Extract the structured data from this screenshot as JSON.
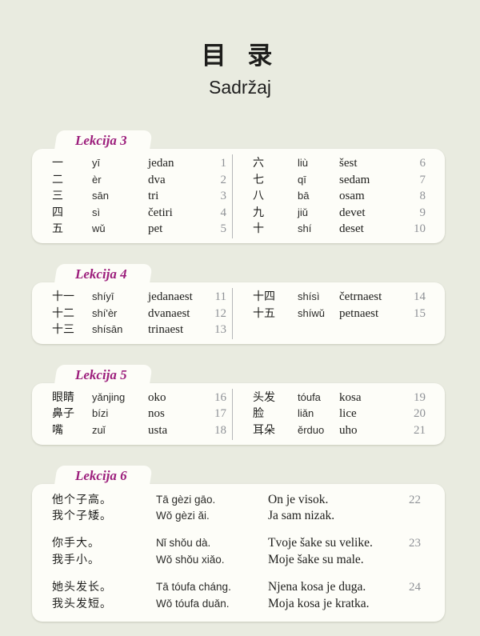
{
  "title": {
    "zh": "目 录",
    "latin": "Sadržaj"
  },
  "colors": {
    "background": "#e9ebe0",
    "card": "#fdfdf8",
    "accent": "#9c1e7c",
    "page_number": "#8e9196",
    "divider": "#b5b6b8",
    "text": "#1d1d1b"
  },
  "sections": [
    {
      "label": "Lekcija 3",
      "left": [
        {
          "hanzi": "一",
          "pinyin": "yī",
          "translation": "jedan",
          "page": "1"
        },
        {
          "hanzi": "二",
          "pinyin": "èr",
          "translation": "dva",
          "page": "2"
        },
        {
          "hanzi": "三",
          "pinyin": "sān",
          "translation": "tri",
          "page": "3"
        },
        {
          "hanzi": "四",
          "pinyin": "sì",
          "translation": "četiri",
          "page": "4"
        },
        {
          "hanzi": "五",
          "pinyin": "wǔ",
          "translation": "pet",
          "page": "5"
        }
      ],
      "right": [
        {
          "hanzi": "六",
          "pinyin": "liù",
          "translation": "šest",
          "page": "6"
        },
        {
          "hanzi": "七",
          "pinyin": "qī",
          "translation": "sedam",
          "page": "7"
        },
        {
          "hanzi": "八",
          "pinyin": "bā",
          "translation": "osam",
          "page": "8"
        },
        {
          "hanzi": "九",
          "pinyin": "jiǔ",
          "translation": "devet",
          "page": "9"
        },
        {
          "hanzi": "十",
          "pinyin": "shí",
          "translation": "deset",
          "page": "10"
        }
      ]
    },
    {
      "label": "Lekcija 4",
      "left": [
        {
          "hanzi": "十一",
          "pinyin": "shíyī",
          "translation": "jedanaest",
          "page": "11"
        },
        {
          "hanzi": "十二",
          "pinyin": "shí'èr",
          "translation": "dvanaest",
          "page": "12"
        },
        {
          "hanzi": "十三",
          "pinyin": "shísān",
          "translation": "trinaest",
          "page": "13"
        }
      ],
      "right": [
        {
          "hanzi": "十四",
          "pinyin": "shísì",
          "translation": "četrnaest",
          "page": "14"
        },
        {
          "hanzi": "十五",
          "pinyin": "shíwǔ",
          "translation": "petnaest",
          "page": "15"
        }
      ]
    },
    {
      "label": "Lekcija 5",
      "left": [
        {
          "hanzi": "眼睛",
          "pinyin": "yǎnjing",
          "translation": "oko",
          "page": "16"
        },
        {
          "hanzi": "鼻子",
          "pinyin": "bízi",
          "translation": "nos",
          "page": "17"
        },
        {
          "hanzi": "嘴",
          "pinyin": "zuǐ",
          "translation": "usta",
          "page": "18"
        }
      ],
      "right": [
        {
          "hanzi": "头发",
          "pinyin": "tóufa",
          "translation": "kosa",
          "page": "19"
        },
        {
          "hanzi": "脸",
          "pinyin": "liǎn",
          "translation": "lice",
          "page": "20"
        },
        {
          "hanzi": "耳朵",
          "pinyin": "ěrduo",
          "translation": "uho",
          "page": "21"
        }
      ]
    },
    {
      "label": "Lekcija 6",
      "groups": [
        {
          "hanzi1": "他个子高。",
          "hanzi2": "我个子矮。",
          "pinyin1": "Tā gèzi gāo.",
          "pinyin2": "Wǒ gèzi ǎi.",
          "translation1": "On je visok.",
          "translation2": "Ja sam nizak.",
          "page": "22"
        },
        {
          "hanzi1": "你手大。",
          "hanzi2": "我手小。",
          "pinyin1": "Nǐ shǒu dà.",
          "pinyin2": "Wǒ shǒu xiǎo.",
          "translation1": "Tvoje šake su velike.",
          "translation2": "Moje šake su male.",
          "page": "23"
        },
        {
          "hanzi1": "她头发长。",
          "hanzi2": "我头发短。",
          "pinyin1": "Tā tóufa cháng.",
          "pinyin2": "Wǒ tóufa duǎn.",
          "translation1": "Njena kosa je duga.",
          "translation2": "Moja kosa je kratka.",
          "page": "24"
        }
      ]
    }
  ]
}
